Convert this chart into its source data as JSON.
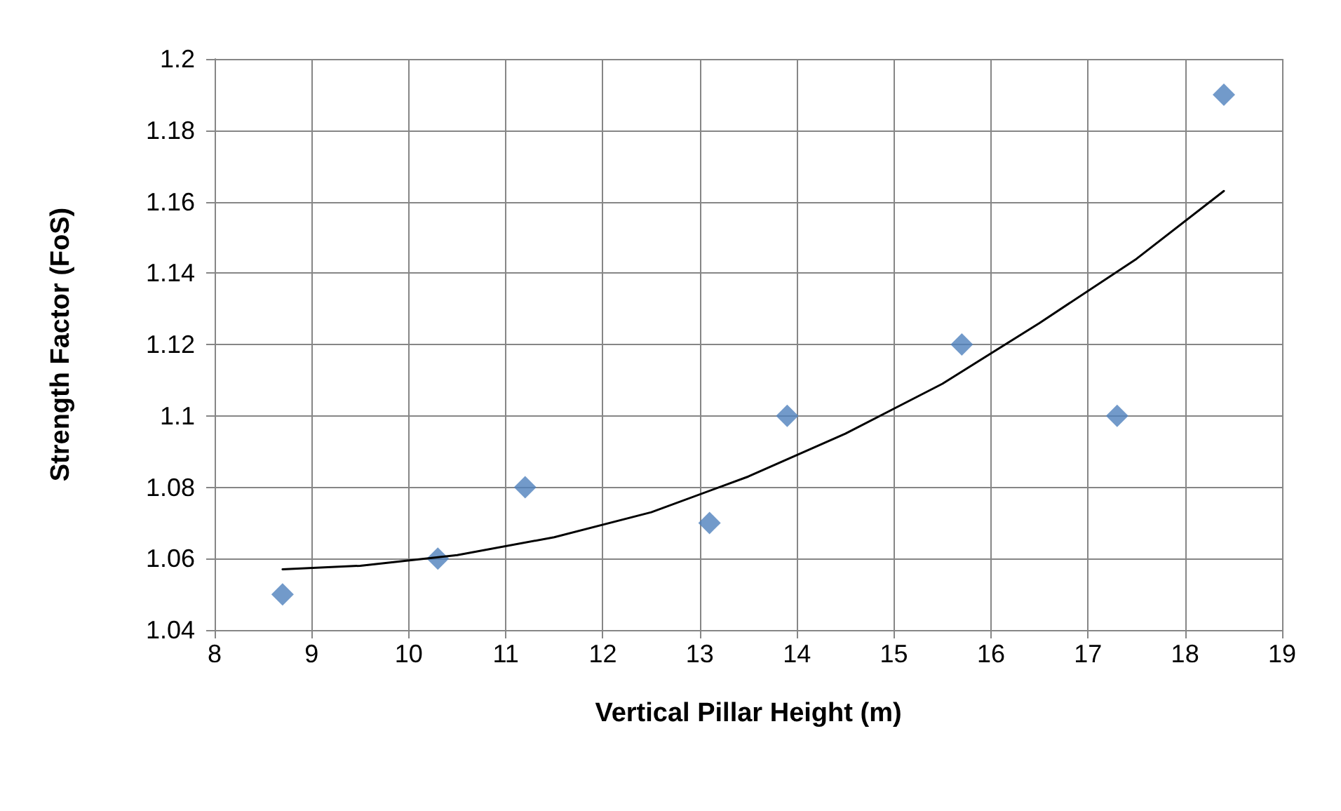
{
  "chart_data": {
    "type": "scatter",
    "xlabel": "Vertical Pillar Height (m)",
    "ylabel": "Strength Factor (FoS)",
    "xlim": [
      8,
      19
    ],
    "xticks": [
      8,
      9,
      10,
      11,
      12,
      13,
      14,
      15,
      16,
      17,
      18,
      19
    ],
    "ylim": [
      1.04,
      1.2
    ],
    "yticks": [
      1.04,
      1.06,
      1.08,
      1.1,
      1.12,
      1.14,
      1.16,
      1.18,
      1.2
    ],
    "grid": true,
    "series": [
      {
        "marker": "diamond",
        "color": "#4f81bd",
        "x": [
          8.7,
          10.3,
          11.2,
          13.1,
          13.9,
          15.7,
          17.3,
          18.4
        ],
        "values": [
          1.05,
          1.06,
          1.08,
          1.07,
          1.1,
          1.12,
          1.1,
          1.19
        ]
      },
      {
        "type": "line",
        "marker": "none",
        "line_style": "solid",
        "color": "#000000",
        "x": [
          8.7,
          9.5,
          10.5,
          11.5,
          12.5,
          13.5,
          14.5,
          15.5,
          16.5,
          17.5,
          18.4
        ],
        "values": [
          1.057,
          1.058,
          1.061,
          1.066,
          1.073,
          1.083,
          1.095,
          1.109,
          1.126,
          1.144,
          1.163
        ]
      }
    ]
  }
}
